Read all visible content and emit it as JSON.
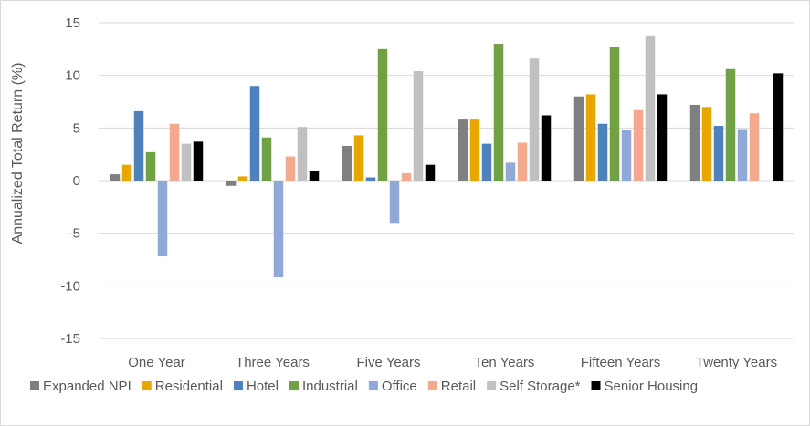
{
  "chart_data": {
    "type": "bar",
    "title": "",
    "xlabel": "",
    "ylabel": "Annualized Total Return (%)",
    "ylim": [
      -15,
      15
    ],
    "yticks": [
      15,
      10,
      5,
      0,
      -5,
      -10,
      -15
    ],
    "grid": true,
    "legend_position": "bottom",
    "categories": [
      "One Year",
      "Three Years",
      "Five Years",
      "Ten Years",
      "Fifteen Years",
      "Twenty Years"
    ],
    "series": [
      {
        "name": "Expanded NPI",
        "color": "#7f7f7f",
        "values": [
          0.6,
          -0.5,
          3.3,
          5.8,
          8.0,
          7.2
        ]
      },
      {
        "name": "Residential",
        "color": "#e6a800",
        "values": [
          1.5,
          0.4,
          4.3,
          5.8,
          8.2,
          7.0
        ]
      },
      {
        "name": "Hotel",
        "color": "#4f81bd",
        "values": [
          6.6,
          9.0,
          0.3,
          3.5,
          5.4,
          5.2
        ]
      },
      {
        "name": "Industrial",
        "color": "#70a144",
        "values": [
          2.7,
          4.1,
          12.5,
          13.0,
          12.7,
          10.6
        ]
      },
      {
        "name": "Office",
        "color": "#91a9d9",
        "values": [
          -7.2,
          -9.2,
          -4.1,
          1.7,
          4.8,
          4.9
        ]
      },
      {
        "name": "Retail",
        "color": "#f4a98f",
        "values": [
          5.4,
          2.3,
          0.7,
          3.6,
          6.7,
          6.4
        ]
      },
      {
        "name": "Self Storage*",
        "color": "#c0c0c0",
        "values": [
          3.5,
          5.1,
          10.4,
          11.6,
          13.8,
          null
        ]
      },
      {
        "name": "Senior Housing",
        "color": "#000000",
        "values": [
          3.7,
          0.9,
          1.5,
          6.2,
          8.2,
          10.2
        ]
      }
    ]
  }
}
